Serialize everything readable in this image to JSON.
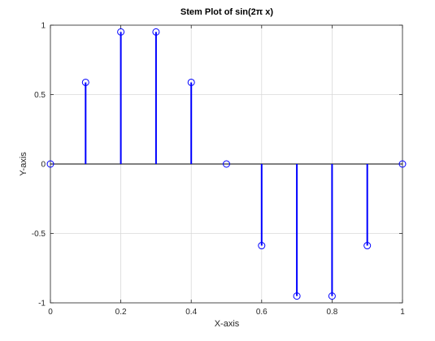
{
  "chart_data": {
    "type": "stem",
    "title": "Stem Plot of sin(2π x)",
    "xlabel": "X-axis",
    "ylabel": "Y-axis",
    "xlim": [
      0,
      1
    ],
    "ylim": [
      -1,
      1
    ],
    "grid": true,
    "x_ticks": [
      0,
      0.2,
      0.4,
      0.6,
      0.8,
      1
    ],
    "x_tick_labels": [
      "0",
      "0.2",
      "0.4",
      "0.6",
      "0.8",
      "1"
    ],
    "y_ticks": [
      -1,
      -0.5,
      0,
      0.5,
      1
    ],
    "y_tick_labels": [
      "-1",
      "-0.5",
      "0",
      "0.5",
      "1"
    ],
    "series": [
      {
        "x": [
          0,
          0.1,
          0.2,
          0.3,
          0.4,
          0.5,
          0.6,
          0.7,
          0.8,
          0.9,
          1.0
        ],
        "y": [
          0,
          0.588,
          0.951,
          0.951,
          0.588,
          0,
          -0.588,
          -0.951,
          -0.951,
          -0.588,
          0
        ],
        "color": "#0000ff",
        "marker": "circle"
      }
    ],
    "baseline": 0,
    "baseline_color": "#000000"
  }
}
